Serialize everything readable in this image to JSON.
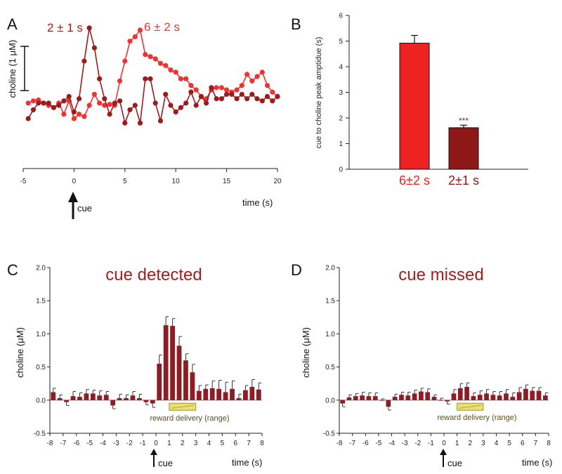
{
  "chart_data": [
    {
      "panel": "A",
      "type": "line",
      "xlabel": "time (s)",
      "ylabel": "choline (1 μM)",
      "xlim": [
        -5,
        20
      ],
      "xticks": [
        "-5",
        "0",
        "5",
        "10",
        "15",
        "20"
      ],
      "scale_bar_uM": 1,
      "cue_label": "cue",
      "cue_time": 0,
      "series": [
        {
          "name": "6 ± 2 s",
          "color": "#ee3333",
          "x": [
            -4.5,
            -4,
            -3.5,
            -3,
            -2.5,
            -2,
            -1.5,
            -1,
            -0.5,
            0,
            0.5,
            1,
            1.5,
            2,
            2.5,
            3,
            3.5,
            4,
            4.5,
            5,
            5.5,
            6,
            6.5,
            7,
            7.5,
            8,
            8.5,
            9,
            9.5,
            10,
            10.5,
            11,
            11.5,
            12,
            12.5,
            13,
            13.5,
            14,
            14.5,
            15,
            15.5,
            16,
            16.5,
            17,
            17.5,
            18,
            18.5,
            19,
            19.5,
            20
          ],
          "y": [
            0.05,
            0.1,
            0.12,
            0.05,
            0.0,
            -0.05,
            0.05,
            -0.2,
            0.1,
            -0.3,
            -0.2,
            -0.25,
            0.0,
            0.25,
            0.05,
            0.0,
            0.02,
            0.0,
            0.55,
            1.0,
            1.45,
            1.55,
            1.7,
            1.15,
            1.1,
            1.05,
            0.95,
            0.9,
            0.8,
            0.75,
            0.6,
            0.6,
            0.45,
            0.35,
            0.2,
            0.15,
            0.35,
            0.4,
            0.4,
            0.35,
            0.3,
            0.35,
            0.45,
            0.7,
            0.55,
            0.65,
            0.75,
            0.45,
            0.3,
            0.2
          ]
        },
        {
          "name": "2 ± 1 s",
          "color": "#9b1c1c",
          "x": [
            -4.5,
            -4,
            -3.5,
            -3,
            -2.5,
            -2,
            -1.5,
            -1,
            -0.5,
            0,
            0.5,
            1,
            1.5,
            2,
            2.5,
            3,
            3.5,
            4,
            4.5,
            5,
            5.5,
            6,
            6.5,
            7,
            7.5,
            8,
            8.5,
            9,
            9.5,
            10,
            10.5,
            11,
            11.5,
            12,
            12.5,
            13,
            13.5,
            14,
            14.5,
            15,
            15.5,
            16,
            16.5,
            17,
            17.5,
            18,
            18.5,
            19,
            19.5,
            20
          ],
          "y": [
            -0.3,
            -0.1,
            0.05,
            0.05,
            0.05,
            -0.05,
            0.0,
            0.1,
            0.2,
            -0.15,
            0.15,
            1.0,
            1.75,
            1.3,
            0.6,
            0.15,
            -0.2,
            0.05,
            0.1,
            -0.4,
            -0.1,
            0.0,
            -0.4,
            0.6,
            0.6,
            0.05,
            -0.35,
            0.25,
            0.0,
            -0.15,
            -0.05,
            0.05,
            0.3,
            0.0,
            0.2,
            0.05,
            0.4,
            0.15,
            0.15,
            0.25,
            0.25,
            0.15,
            0.25,
            0.15,
            0.25,
            0.15,
            0.1,
            0.2,
            0.1,
            0.2
          ]
        }
      ]
    },
    {
      "panel": "B",
      "type": "bar",
      "ylabel": "cue to choline peak amptidue (s)",
      "ylim": [
        0,
        6
      ],
      "yticks": [
        "0",
        "1",
        "2",
        "3",
        "4",
        "5",
        "6"
      ],
      "categories": [
        "6±2 s",
        "2±1 s"
      ],
      "values": [
        4.92,
        1.62
      ],
      "errors": [
        0.3,
        0.1
      ],
      "colors": [
        "#ee2222",
        "#8e1818"
      ],
      "significance": "***"
    },
    {
      "panel": "C",
      "type": "bar",
      "title": "cue detected",
      "xlabel": "time (s)",
      "ylabel": "choline (μM)",
      "ylim": [
        -0.5,
        2.0
      ],
      "yticks": [
        "-0.5",
        "0.0",
        "0.5",
        "1.0",
        "1.5",
        "2.0"
      ],
      "xticks": [
        "-8",
        "-7",
        "-6",
        "-5",
        "-4",
        "-3",
        "-2",
        "-1",
        "0",
        "1",
        "2",
        "3",
        "4",
        "5",
        "6",
        "7",
        "8"
      ],
      "xlim": [
        -8,
        8
      ],
      "bar_x": [
        -7.5,
        -7,
        -6.5,
        -6,
        -5.5,
        -5,
        -4.5,
        -4,
        -3.5,
        -3,
        -2.5,
        -2,
        -1.5,
        -1,
        -0.5,
        0,
        0.5,
        1,
        1.5,
        2,
        2.5,
        3,
        3.5,
        4,
        4.5,
        5,
        5.5,
        6,
        6.5,
        7,
        7.5,
        8
      ],
      "values": [
        0.12,
        0.03,
        -0.03,
        0.06,
        0.05,
        0.1,
        0.1,
        0.07,
        0.08,
        -0.08,
        0.03,
        0.03,
        0.07,
        0.03,
        -0.03,
        -0.05,
        0.55,
        1.13,
        1.12,
        0.82,
        0.6,
        0.42,
        0.14,
        0.17,
        0.18,
        0.17,
        0.12,
        0.17,
        0.03,
        0.15,
        0.2,
        0.16
      ],
      "errors": [
        0.06,
        0.05,
        0.05,
        0.07,
        0.06,
        0.06,
        0.05,
        0.07,
        0.05,
        0.05,
        0.06,
        0.05,
        0.06,
        0.06,
        0.04,
        0.06,
        0.13,
        0.13,
        0.11,
        0.14,
        0.1,
        0.12,
        0.08,
        0.06,
        0.11,
        0.13,
        0.15,
        0.12,
        0.06,
        0.07,
        0.11,
        0.1
      ],
      "cue_label": "cue",
      "reward_label": "reward delivery (range)",
      "reward_range": [
        1,
        3
      ]
    },
    {
      "panel": "D",
      "type": "bar",
      "title": "cue missed",
      "xlabel": "time (s)",
      "ylabel": "choline (μM)",
      "ylim": [
        -0.5,
        2.0
      ],
      "yticks": [
        "-0.5",
        "0.0",
        "0.5",
        "1.0",
        "1.5",
        "2.0"
      ],
      "xticks": [
        "-8",
        "-7",
        "-6",
        "-5",
        "-4",
        "-3",
        "-2",
        "-1",
        "0",
        "1",
        "2",
        "3",
        "4",
        "5",
        "6",
        "7",
        "8"
      ],
      "xlim": [
        -8,
        8
      ],
      "bar_x": [
        -7.5,
        -7,
        -6.5,
        -6,
        -5.5,
        -5,
        -4.5,
        -4,
        -3.5,
        -3,
        -2.5,
        -2,
        -1.5,
        -1,
        -0.5,
        0,
        0.5,
        1,
        1.5,
        2,
        2.5,
        3,
        3.5,
        4,
        4.5,
        5,
        5.5,
        6,
        6.5,
        7,
        7.5,
        8
      ],
      "values": [
        -0.05,
        0.04,
        0.06,
        0.07,
        0.06,
        0.06,
        0.0,
        -0.1,
        0.05,
        0.08,
        0.07,
        0.1,
        0.13,
        0.12,
        0.05,
        0.0,
        -0.02,
        0.1,
        0.18,
        0.2,
        0.06,
        0.08,
        0.1,
        0.08,
        0.07,
        0.1,
        0.05,
        0.12,
        0.17,
        0.14,
        0.14,
        0.07
      ],
      "errors": [
        0.05,
        0.04,
        0.04,
        0.05,
        0.05,
        0.05,
        0.02,
        0.05,
        0.04,
        0.04,
        0.05,
        0.05,
        0.05,
        0.05,
        0.03,
        0.03,
        0.04,
        0.06,
        0.07,
        0.06,
        0.05,
        0.06,
        0.06,
        0.05,
        0.06,
        0.06,
        0.06,
        0.07,
        0.06,
        0.05,
        0.05,
        0.04
      ],
      "cue_label": "cue",
      "reward_label": "reward delivery (range)",
      "reward_range": [
        1,
        3
      ]
    }
  ],
  "labels": {
    "panelA": "A",
    "panelB": "B",
    "panelC": "C",
    "panelD": "D"
  },
  "colors": {
    "light_red": "#ee3333",
    "dark_red": "#9b1c1c",
    "bar_red": "#8e1c24",
    "reward_bar": "#e8e070"
  }
}
